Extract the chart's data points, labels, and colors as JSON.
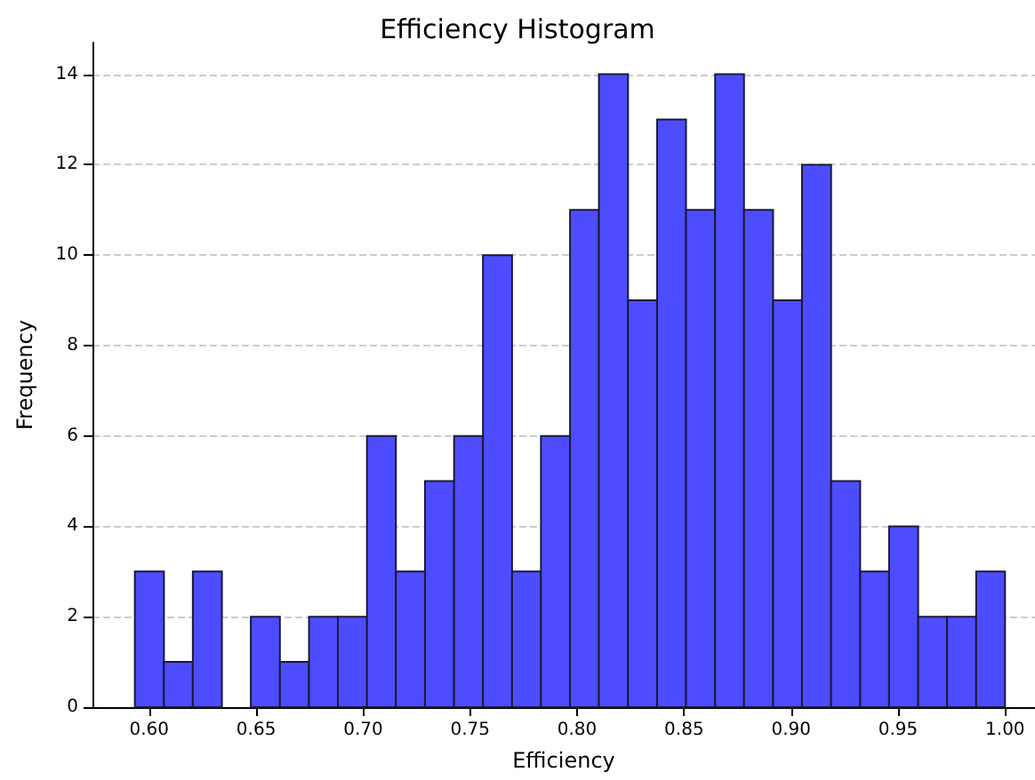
{
  "chart_data": {
    "type": "histogram",
    "title": "Efficiency Histogram",
    "xlabel": "Efficiency",
    "ylabel": "Frequency",
    "bins": [
      0.5933,
      0.6069,
      0.6204,
      0.634,
      0.6475,
      0.6611,
      0.6747,
      0.6882,
      0.7018,
      0.7153,
      0.7289,
      0.7425,
      0.756,
      0.7696,
      0.7831,
      0.7967,
      0.8102,
      0.8238,
      0.8374,
      0.8509,
      0.8645,
      0.878,
      0.8916,
      0.9051,
      0.9187,
      0.9323,
      0.9458,
      0.9594,
      0.9729,
      0.9865,
      1.0
    ],
    "values": [
      3,
      1,
      3,
      0,
      2,
      1,
      2,
      2,
      6,
      3,
      5,
      6,
      10,
      3,
      6,
      11,
      14,
      9,
      13,
      11,
      14,
      11,
      9,
      12,
      5,
      3,
      4,
      2,
      2,
      3
    ],
    "color": "#4d4dff",
    "xlim": [
      0.5735,
      1.014
    ],
    "xticks": [
      {
        "value": 0.6,
        "label": "0.60"
      },
      0.65,
      {
        "value": 0.7,
        "label": "0.70"
      },
      0.75,
      {
        "value": 0.8,
        "label": "0.80"
      },
      0.85,
      {
        "value": 0.9,
        "label": "0.90"
      },
      0.95,
      {
        "value": 1.0,
        "label": "1.00"
      }
    ],
    "ylim": [
      0,
      14.7
    ],
    "yticks": [
      0,
      2,
      4,
      6,
      8,
      10,
      12,
      14
    ],
    "grid": "y"
  }
}
